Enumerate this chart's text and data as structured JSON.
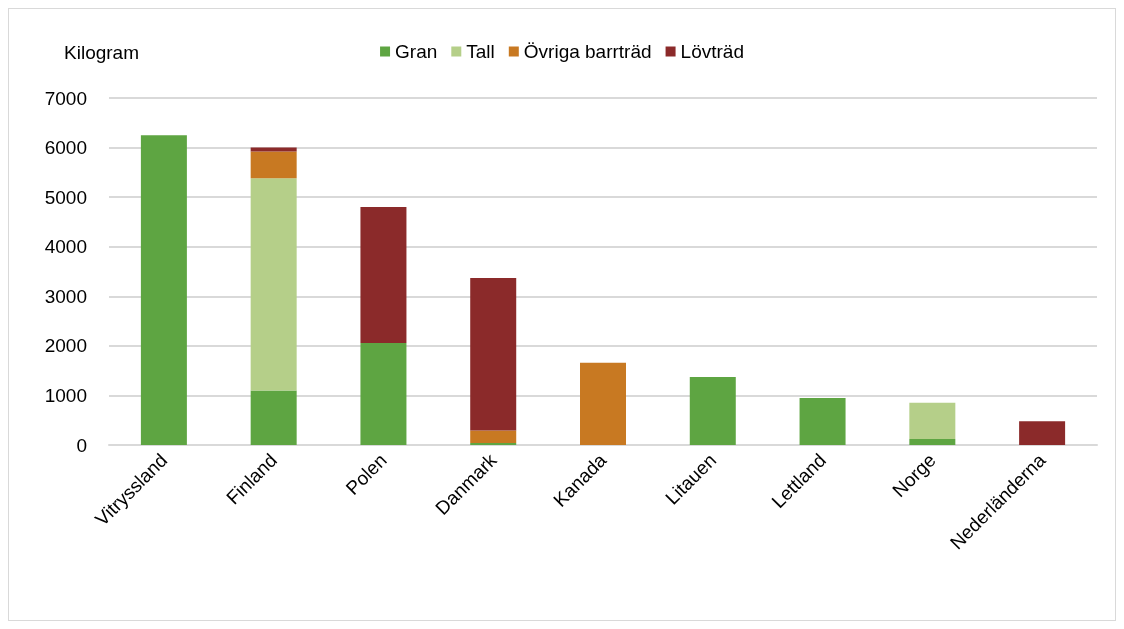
{
  "chart_data": {
    "type": "bar",
    "stacked": true,
    "ylabel": "Kilogram",
    "categories": [
      "Vitryssland",
      "Finland",
      "Polen",
      "Danmark",
      "Kanada",
      "Litauen",
      "Lettland",
      "Norge",
      "Nederländerna"
    ],
    "series": [
      {
        "name": "Gran",
        "color": "#5ea542",
        "values": [
          6250,
          1100,
          2060,
          40,
          0,
          1370,
          950,
          120,
          0
        ]
      },
      {
        "name": "Tall",
        "color": "#b5cf89",
        "values": [
          0,
          4280,
          0,
          0,
          0,
          0,
          0,
          730,
          0
        ]
      },
      {
        "name": "Övriga barrträd",
        "color": "#c87922",
        "values": [
          0,
          540,
          0,
          250,
          1660,
          0,
          0,
          0,
          0
        ]
      },
      {
        "name": "Lövträd",
        "color": "#8b2a2a",
        "values": [
          0,
          80,
          2740,
          3080,
          0,
          0,
          0,
          0,
          480
        ]
      }
    ],
    "ylim": [
      0,
      7000
    ],
    "yticks": [
      0,
      1000,
      2000,
      3000,
      4000,
      5000,
      6000,
      7000
    ],
    "grid": "y",
    "legend": "top"
  }
}
